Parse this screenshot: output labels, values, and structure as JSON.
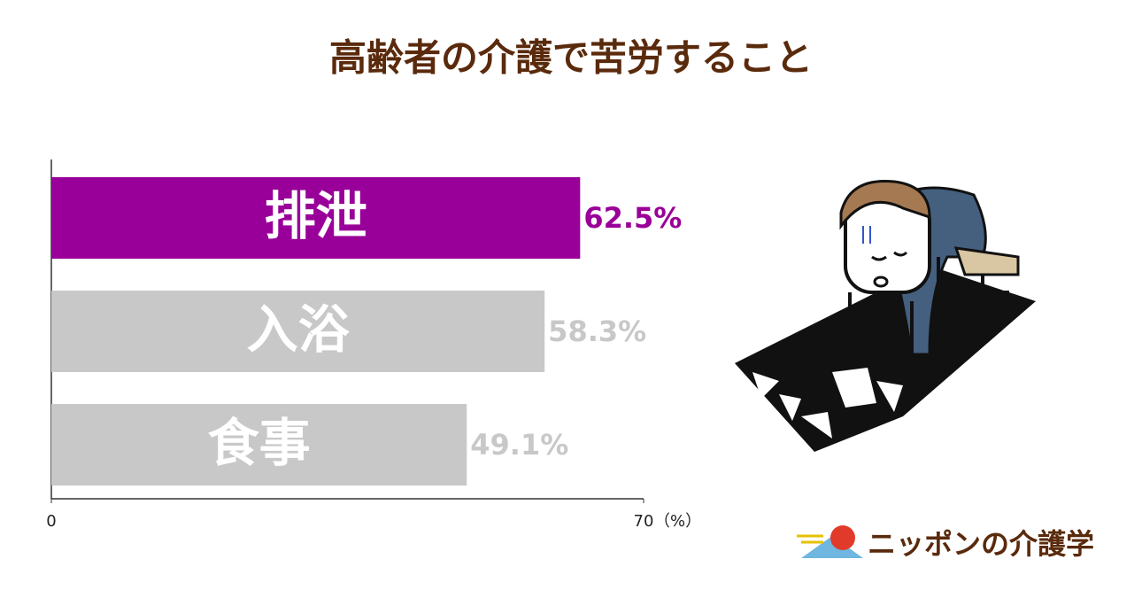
{
  "chart_data": {
    "type": "bar",
    "orientation": "horizontal",
    "title": "高齢者の介護で苦労すること",
    "categories": [
      "排泄",
      "入浴",
      "食事"
    ],
    "values": [
      62.5,
      58.3,
      49.1
    ],
    "value_labels": [
      "62.5%",
      "58.3%",
      "49.1%"
    ],
    "colors": [
      "#990099",
      "#c8c8c8",
      "#c8c8c8"
    ],
    "label_colors": [
      "#990099",
      "#c8c8c8",
      "#c8c8c8"
    ],
    "xlim": [
      0,
      70
    ],
    "xticks": [
      0,
      70
    ],
    "x_unit": "（%）"
  },
  "logo_text": "ニッポンの介護学"
}
